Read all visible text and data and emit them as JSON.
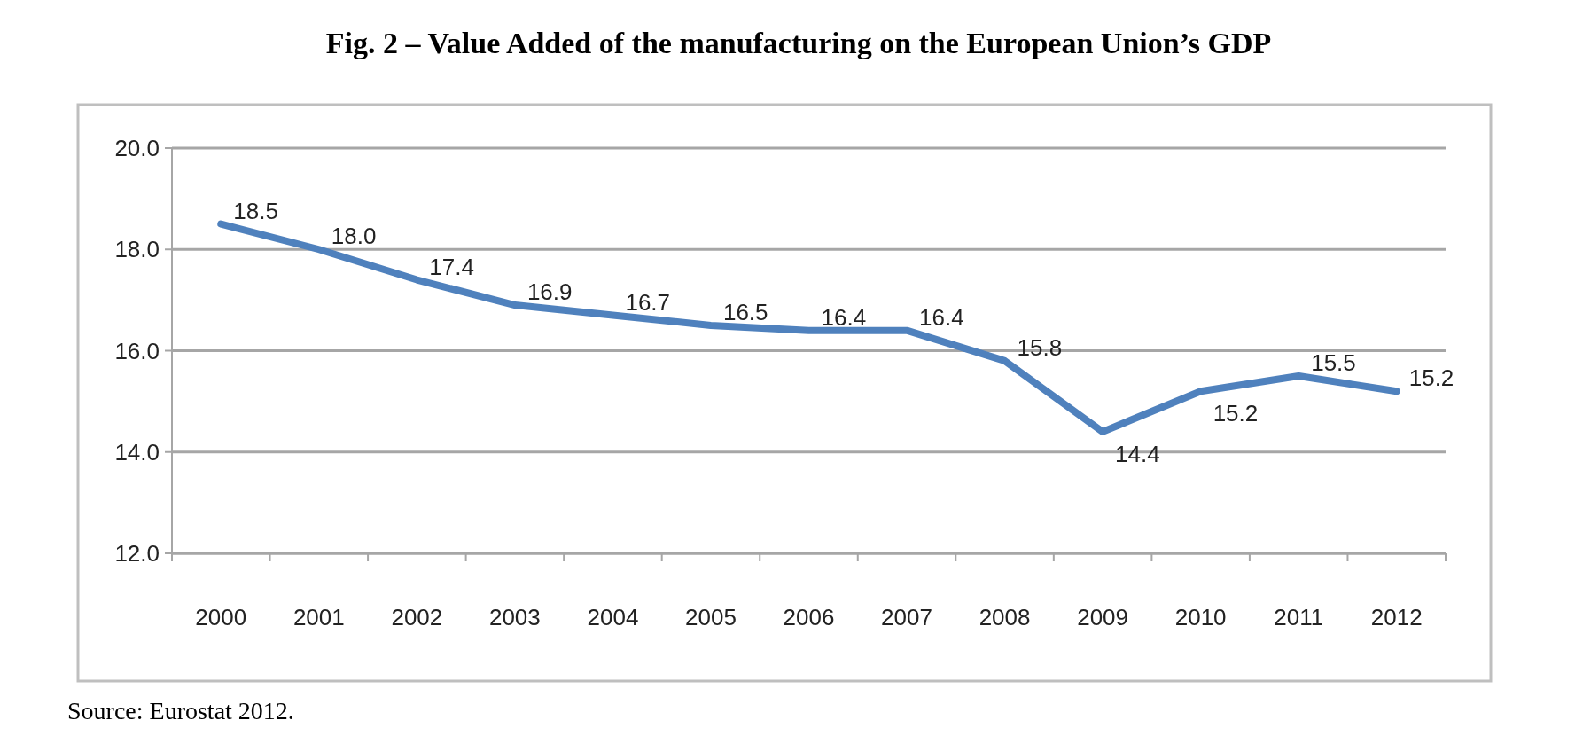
{
  "chart_data": {
    "type": "line",
    "title": "Fig. 2  – Value Added of the manufacturing on the European Union’s GDP",
    "categories": [
      "2000",
      "2001",
      "2002",
      "2003",
      "2004",
      "2005",
      "2006",
      "2007",
      "2008",
      "2009",
      "2010",
      "2011",
      "2012"
    ],
    "series": [
      {
        "color": "#4f81bd",
        "values": [
          18.5,
          18.0,
          17.4,
          16.9,
          16.7,
          16.5,
          16.4,
          16.4,
          15.8,
          14.4,
          15.2,
          15.5,
          15.2
        ],
        "value_labels": [
          "18.5",
          "18.0",
          "17.4",
          "16.9",
          "16.7",
          "16.5",
          "16.4",
          "16.4",
          "15.8",
          "14.4",
          "15.2",
          "15.5",
          "15.2"
        ]
      }
    ],
    "ylim": [
      12,
      20
    ],
    "yticks": [
      {
        "value": 12,
        "label": "12.0"
      },
      {
        "value": 14,
        "label": "14.0"
      },
      {
        "value": 16,
        "label": "16.0"
      },
      {
        "value": 18,
        "label": "18.0"
      },
      {
        "value": 20,
        "label": "20.0"
      }
    ],
    "grid": "y",
    "line_style": "solid",
    "annotations": [
      "Source: Eurostat 2012."
    ]
  }
}
